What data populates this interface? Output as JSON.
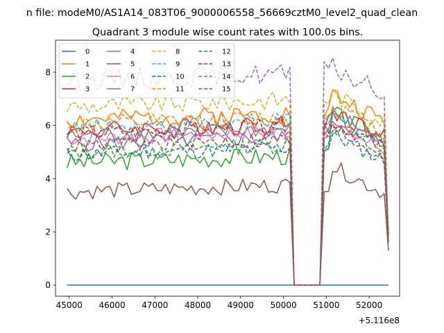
{
  "chart_data": {
    "type": "line",
    "suptitle": "n file: modeM0/AS1A14_083T06_9000006558_56669cztM0_level2_quad_clean",
    "title": "Quadrant 3 module wise count rates with 100.0s bins.",
    "xlabel": "",
    "ylabel": "",
    "x_offset_label": "+5.116e8",
    "x_start": 44950,
    "x_step": 100,
    "x_count": 76,
    "xlim": [
      44680,
      52710
    ],
    "ylim": [
      -0.42,
      9.2
    ],
    "xticks": [
      45000,
      46000,
      47000,
      48000,
      49000,
      50000,
      51000,
      52000
    ],
    "xtick_labels": [
      "45000",
      "46000",
      "47000",
      "48000",
      "49000",
      "50000",
      "51000",
      "52000"
    ],
    "yticks": [
      0,
      2,
      4,
      6,
      8
    ],
    "ytick_labels": [
      "0",
      "2",
      "4",
      "6",
      "8"
    ],
    "grid": false,
    "legend_position": "top-left",
    "legend_columns": 4,
    "series": [
      {
        "name": "0",
        "color": "#1f77b4",
        "dash": "solid",
        "base": 0,
        "amp": 0,
        "post": 0,
        "end": 0,
        "seed": 1
      },
      {
        "name": "1",
        "color": "#ff7f0e",
        "dash": "solid",
        "base": 6.2,
        "amp": 0.35,
        "post": 6.6,
        "end": 2.0,
        "seed": 2
      },
      {
        "name": "2",
        "color": "#2ca02c",
        "dash": "solid",
        "base": 4.6,
        "amp": 0.35,
        "post": 5.9,
        "end": 1.7,
        "seed": 3
      },
      {
        "name": "3",
        "color": "#d62728",
        "dash": "solid",
        "base": 5.8,
        "amp": 0.35,
        "post": 6.0,
        "end": 1.9,
        "seed": 4
      },
      {
        "name": "4",
        "color": "#9467bd",
        "dash": "solid",
        "base": 5.3,
        "amp": 0.3,
        "post": 5.7,
        "end": 1.6,
        "seed": 5
      },
      {
        "name": "5",
        "color": "#8c564b",
        "dash": "solid",
        "base": 3.5,
        "amp": 0.3,
        "post": 3.9,
        "end": 1.3,
        "seed": 6
      },
      {
        "name": "6",
        "color": "#e377c2",
        "dash": "solid",
        "base": 5.5,
        "amp": 0.3,
        "post": 5.5,
        "end": 1.8,
        "seed": 7
      },
      {
        "name": "7",
        "color": "#7f7f7f",
        "dash": "solid",
        "base": 5.6,
        "amp": 0.3,
        "post": 5.9,
        "end": 1.7,
        "seed": 8
      },
      {
        "name": "8",
        "color": "#bcbd22",
        "dash": "dashed",
        "base": 6.7,
        "amp": 0.35,
        "post": 6.6,
        "end": 1.9,
        "seed": 9
      },
      {
        "name": "9",
        "color": "#17becf",
        "dash": "dashed",
        "base": 5.9,
        "amp": 0.3,
        "post": 5.8,
        "end": 1.8,
        "seed": 10
      },
      {
        "name": "10",
        "color": "#1f77b4",
        "dash": "dashed",
        "base": 4.9,
        "amp": 0.3,
        "post": 5.1,
        "end": 1.6,
        "seed": 11
      },
      {
        "name": "11",
        "color": "#ff7f0e",
        "dash": "dashed",
        "base": 6.0,
        "amp": 0.35,
        "post": 6.2,
        "end": 1.9,
        "seed": 12
      },
      {
        "name": "12",
        "color": "#2ca02c",
        "dash": "dashed",
        "base": 5.0,
        "amp": 0.3,
        "post": 5.4,
        "end": 1.6,
        "seed": 13
      },
      {
        "name": "13",
        "color": "#d62728",
        "dash": "dashed",
        "base": 5.7,
        "amp": 0.3,
        "post": 5.6,
        "end": 1.9,
        "seed": 14
      },
      {
        "name": "14",
        "color": "#9467bd",
        "dash": "dashed",
        "base": 7.7,
        "amp": 0.4,
        "post": 7.6,
        "end": 1.7,
        "seed": 15
      },
      {
        "name": "15",
        "color": "#8c564b",
        "dash": "dashed",
        "base": 5.2,
        "amp": 0.3,
        "post": 5.3,
        "end": 1.6,
        "seed": 16
      }
    ]
  }
}
